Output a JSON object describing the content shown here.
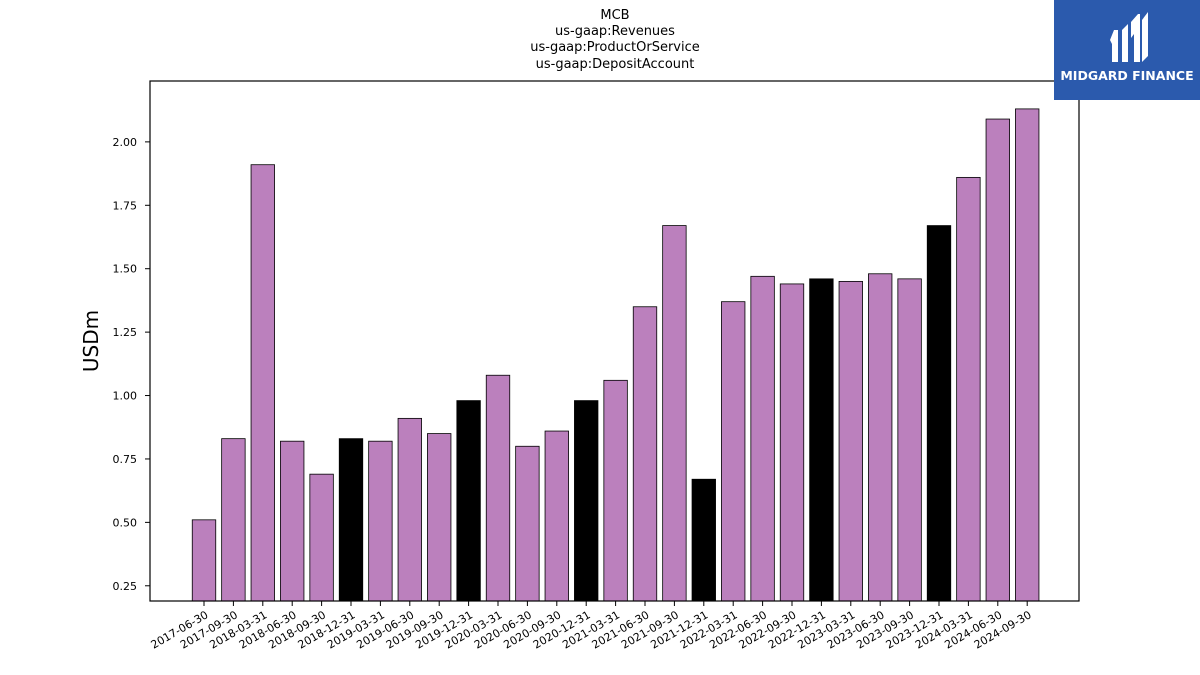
{
  "chart_data": {
    "type": "bar",
    "title_lines": [
      "MCB",
      "us-gaap:Revenues",
      "us-gaap:ProductOrService",
      "us-gaap:DepositAccount"
    ],
    "ylabel": "USDm",
    "ylim": [
      0.19,
      2.24
    ],
    "yticks": [
      "0.25",
      "0.50",
      "0.75",
      "1.00",
      "1.25",
      "1.50",
      "1.75",
      "2.00"
    ],
    "categories": [
      "2017-06-30",
      "2017-09-30",
      "2018-03-31",
      "2018-06-30",
      "2018-09-30",
      "2018-12-31",
      "2019-03-31",
      "2019-06-30",
      "2019-09-30",
      "2019-12-31",
      "2020-03-31",
      "2020-06-30",
      "2020-09-30",
      "2020-12-31",
      "2021-03-31",
      "2021-06-30",
      "2021-09-30",
      "2021-12-31",
      "2022-03-31",
      "2022-06-30",
      "2022-09-30",
      "2022-12-31",
      "2023-03-31",
      "2023-06-30",
      "2023-09-30",
      "2023-12-31",
      "2024-03-31",
      "2024-06-30",
      "2024-09-30"
    ],
    "values": [
      0.51,
      0.83,
      1.91,
      0.82,
      0.69,
      0.83,
      0.82,
      0.91,
      0.85,
      0.98,
      1.08,
      0.8,
      0.86,
      0.98,
      1.06,
      1.35,
      1.67,
      0.67,
      1.37,
      1.47,
      1.44,
      1.46,
      1.45,
      1.48,
      1.46,
      1.67,
      1.86,
      2.09,
      2.13
    ],
    "year_end": [
      false,
      false,
      false,
      false,
      false,
      true,
      false,
      false,
      false,
      true,
      false,
      false,
      false,
      true,
      false,
      false,
      false,
      true,
      false,
      false,
      false,
      true,
      false,
      false,
      false,
      true,
      false,
      false,
      false
    ],
    "colors": {
      "quarter": "#bb80bd",
      "year_end": "#000000"
    }
  },
  "logo": {
    "name": "MIDGARD FINANCE"
  }
}
